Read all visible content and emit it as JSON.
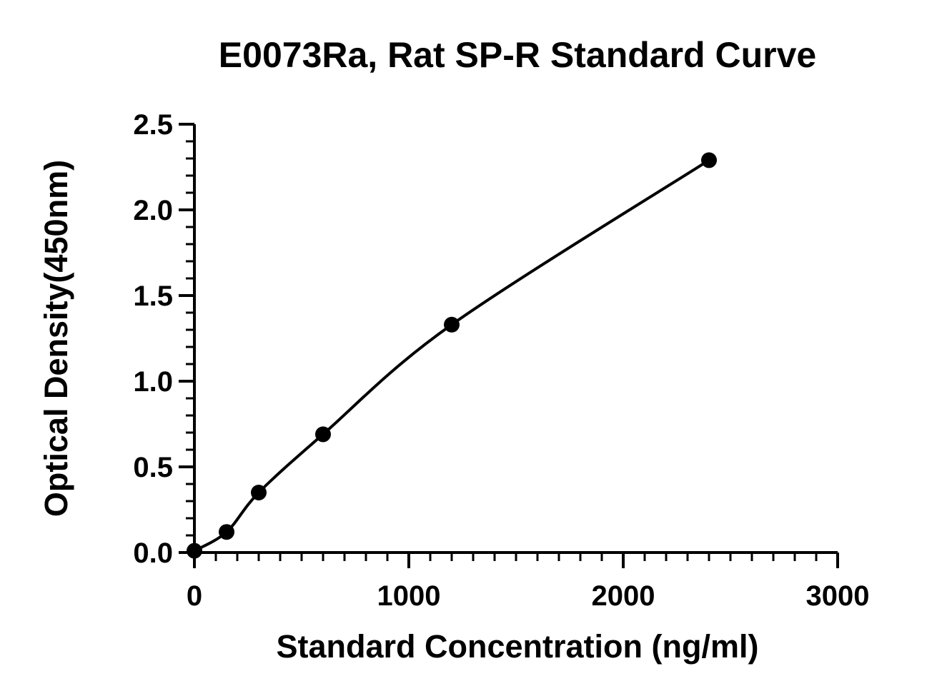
{
  "chart_data": {
    "type": "scatter",
    "title": "E0073Ra, Rat SP-R Standard Curve",
    "xlabel": "Standard Concentration (ng/ml)",
    "ylabel": "Optical Density(450nm)",
    "xlim": [
      0,
      3000
    ],
    "ylim": [
      0,
      2.5
    ],
    "x_ticks": [
      "0",
      "1000",
      "2000",
      "3000"
    ],
    "y_ticks": [
      "0.0",
      "0.5",
      "1.0",
      "1.5",
      "2.0",
      "2.5"
    ],
    "x_minor_step": 100,
    "y_minor_step": 0.1,
    "grid": false,
    "legend": "none",
    "series": [
      {
        "x": [
          0,
          150,
          300,
          600,
          1200,
          2400
        ],
        "y": [
          0.01,
          0.12,
          0.35,
          0.69,
          1.33,
          2.29
        ],
        "fit": "smooth curve through points",
        "color": "#000000"
      }
    ]
  }
}
